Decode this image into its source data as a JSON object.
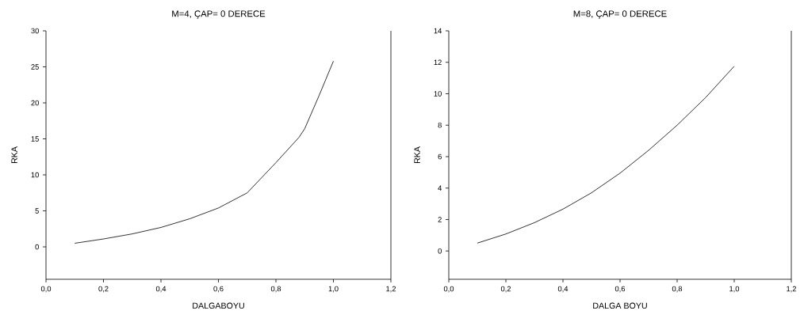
{
  "chart_data": [
    {
      "type": "line",
      "title": "M=4, ÇAP= 0 DERECE",
      "xlabel": "DALGABOYU",
      "ylabel": "RKA",
      "color": "#000000",
      "x": [
        0.1,
        0.2,
        0.3,
        0.4,
        0.5,
        0.6,
        0.7,
        0.8,
        0.88,
        0.9,
        0.95,
        1.0
      ],
      "values": [
        0.5,
        1.1,
        1.8,
        2.7,
        3.9,
        5.4,
        7.5,
        11.7,
        15.2,
        16.4,
        21.0,
        25.8
      ],
      "xlim": [
        0,
        1.2
      ],
      "ylim": [
        -4.5,
        30
      ],
      "xticks": [
        {
          "value": 0,
          "label": "0,0"
        },
        {
          "value": 0.2,
          "label": "0,2"
        },
        {
          "value": 0.4,
          "label": "0,4"
        },
        {
          "value": 0.6,
          "label": "0,6"
        },
        {
          "value": 0.8,
          "label": "0,8"
        },
        {
          "value": 1.0,
          "label": "1,0"
        },
        {
          "value": 1.2,
          "label": "1,2"
        }
      ],
      "yticks": [
        0,
        5,
        10,
        15,
        20,
        25,
        30
      ]
    },
    {
      "type": "line",
      "title": "M=8, ÇAP= 0 DERECE",
      "xlabel": "DALGA BOYU",
      "ylabel": "RKA",
      "color": "#000000",
      "x": [
        0.1,
        0.2,
        0.3,
        0.4,
        0.5,
        0.6,
        0.7,
        0.8,
        0.9,
        1.0
      ],
      "values": [
        0.5,
        1.08,
        1.8,
        2.66,
        3.7,
        4.95,
        6.4,
        8.0,
        9.76,
        11.75
      ],
      "xlim": [
        0,
        1.2
      ],
      "ylim": [
        -1.8,
        14
      ],
      "xticks": [
        {
          "value": 0,
          "label": "0,0"
        },
        {
          "value": 0.2,
          "label": "0,2"
        },
        {
          "value": 0.4,
          "label": "0,4"
        },
        {
          "value": 0.6,
          "label": "0,6"
        },
        {
          "value": 0.8,
          "label": "0,8"
        },
        {
          "value": 1.0,
          "label": "1,0"
        },
        {
          "value": 1.2,
          "label": "1,2"
        }
      ],
      "yticks": [
        0,
        2,
        4,
        6,
        8,
        10,
        12,
        14
      ]
    }
  ]
}
